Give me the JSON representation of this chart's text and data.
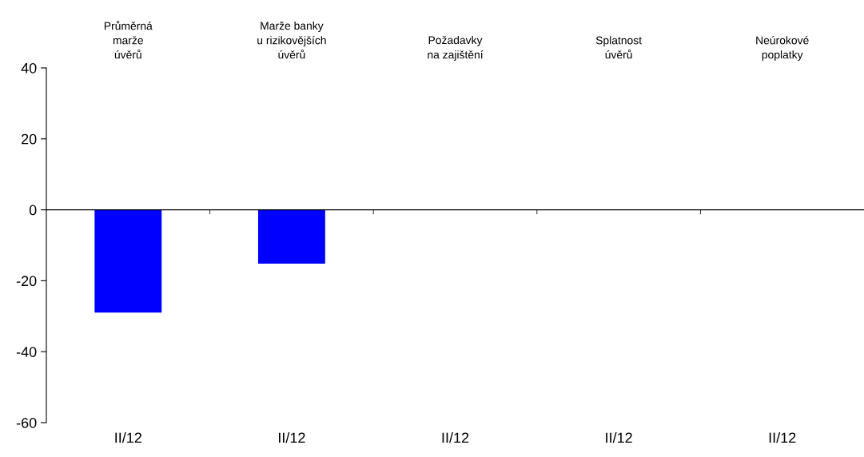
{
  "chart_data": {
    "type": "bar",
    "categories": [
      "II/12",
      "II/12",
      "II/12",
      "II/12",
      "II/12"
    ],
    "values": [
      -29,
      -15.2,
      0,
      0,
      0
    ],
    "color": "#0000ff",
    "ylim": [
      -60,
      40
    ],
    "yticks": [
      -60,
      -40,
      -20,
      0,
      20,
      40
    ],
    "legend": false,
    "annotations": [
      "Průměrná\nmarže\núvěrů",
      "Marže banky\nu rizikovějších\núvěrů",
      "Požadavky\nna zajištění",
      "Splatnost\núvěrů",
      "Neúrokové\npoplatky"
    ]
  }
}
